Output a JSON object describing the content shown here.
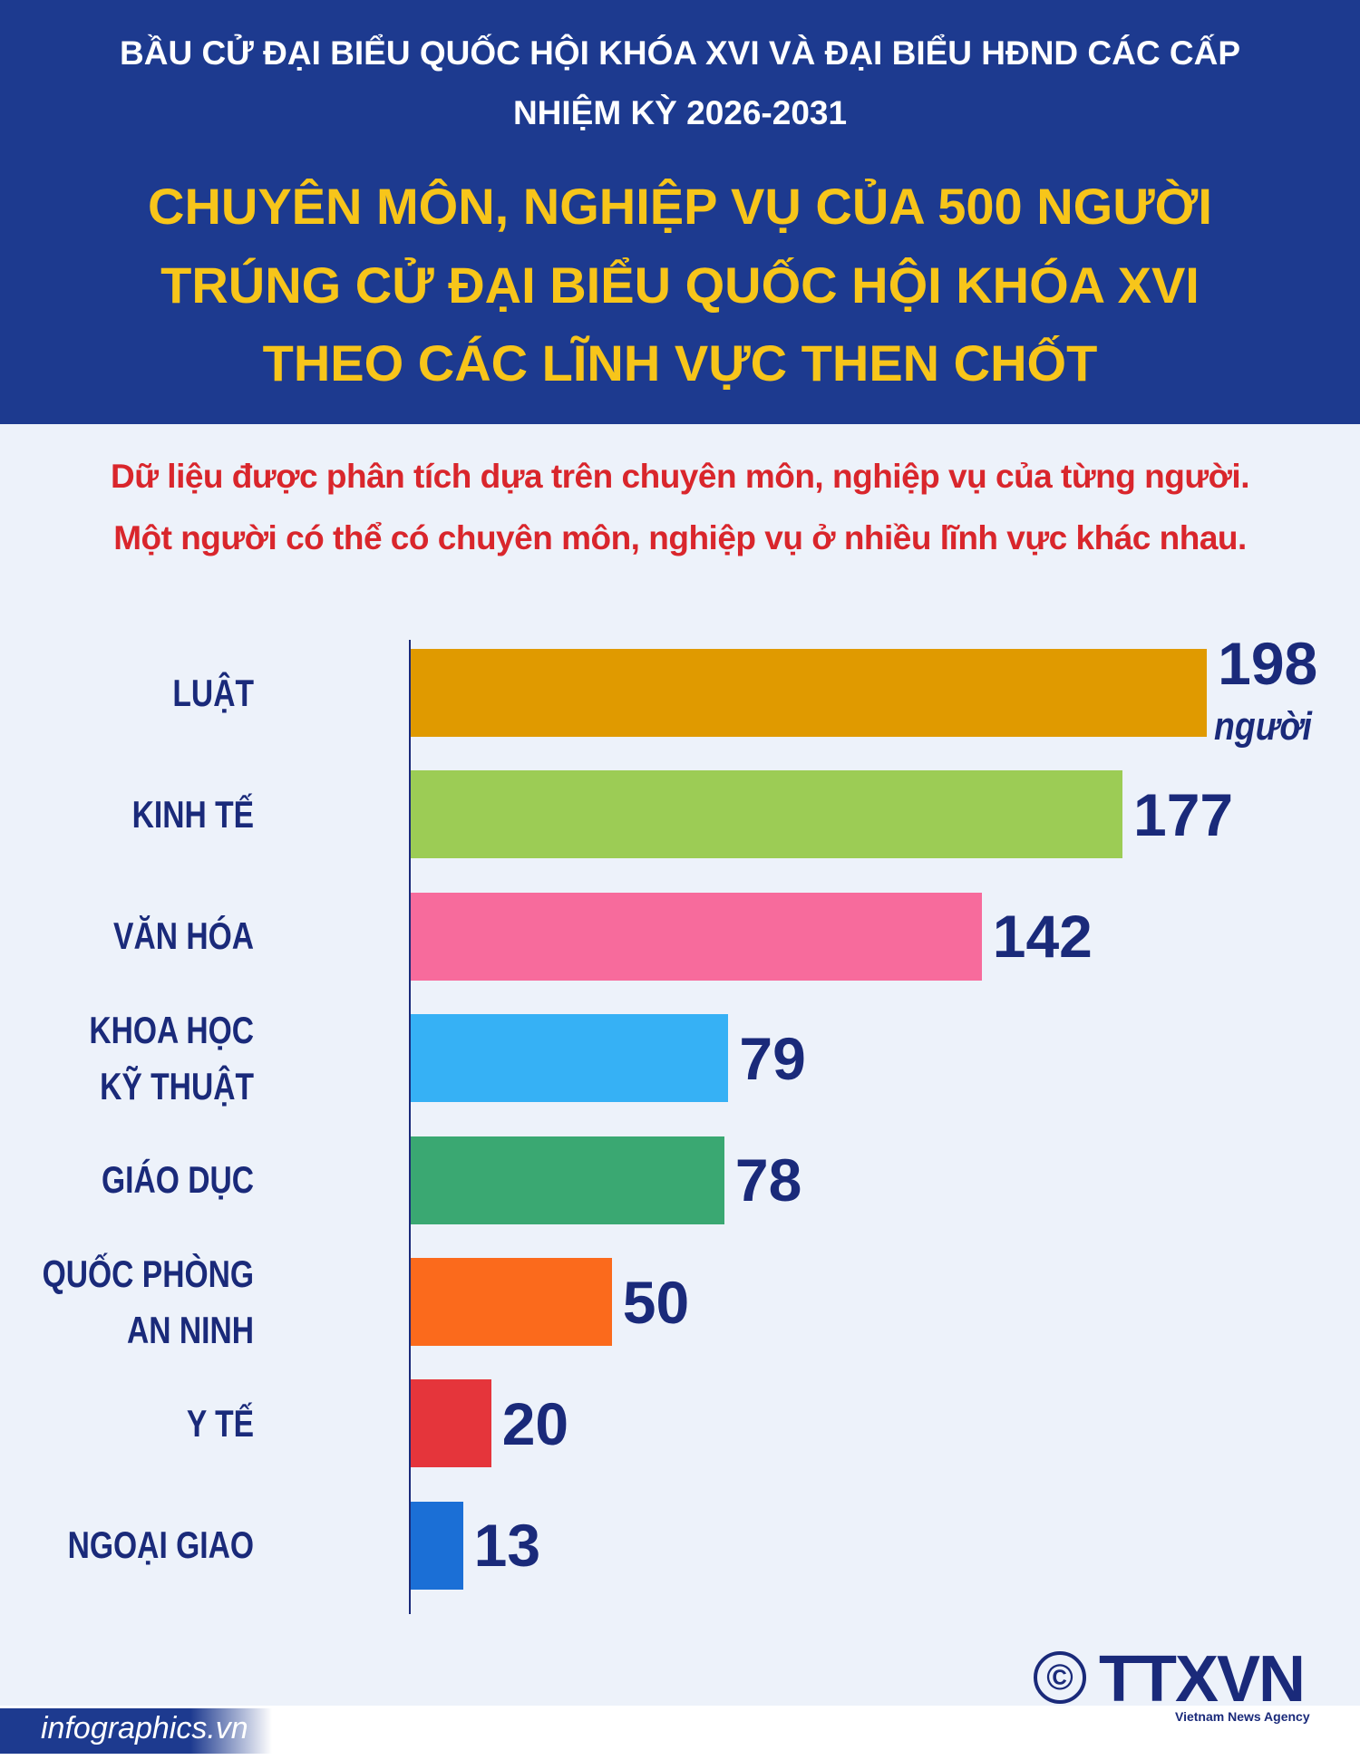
{
  "chart_data": {
    "type": "bar",
    "orientation": "horizontal",
    "supertitle": [
      "BẦU CỬ ĐẠI BIỂU QUỐC HỘI KHÓA XVI VÀ ĐẠI BIỂU HĐND CÁC CẤP",
      "NHIỆM KỲ 2026-2031"
    ],
    "title": [
      "CHUYÊN MÔN, NGHIỆP VỤ CỦA 500 NGƯỜI",
      "TRÚNG CỬ ĐẠI BIỂU QUỐC HỘI KHÓA XVI",
      "THEO CÁC LĨNH VỰC THEN CHỐT"
    ],
    "subtitle": [
      "Dữ liệu được phân tích dựa trên chuyên môn, nghiệp vụ của từng người.",
      "Một người có thể có chuyên môn, nghiệp vụ ở nhiều lĩnh vực khác nhau."
    ],
    "categories": [
      "LUẬT",
      "KINH TẾ",
      "VĂN HÓA",
      "KHOA HỌC\nKỸ THUẬT",
      "GIÁO DỤC",
      "QUỐC PHÒNG\nAN NINH",
      "Y TẾ",
      "NGOẠI GIAO"
    ],
    "values": [
      198,
      177,
      142,
      79,
      78,
      50,
      20,
      13
    ],
    "colors": [
      "#e09a00",
      "#9ccc55",
      "#f76b9c",
      "#36b1f5",
      "#3aa872",
      "#fb6a1c",
      "#e5353b",
      "#1b6fd6"
    ],
    "unit": "người",
    "source": "infographics.vn",
    "copyright": "©",
    "agency": "TTXVN",
    "agency_en": "Vietnam News Agency"
  }
}
